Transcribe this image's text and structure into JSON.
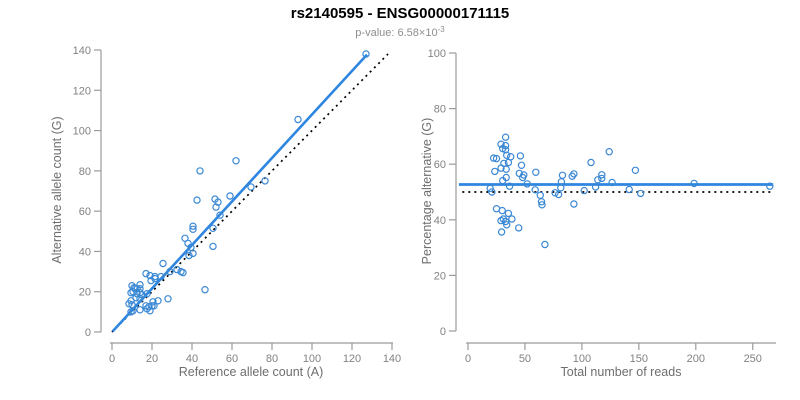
{
  "header": {
    "title": "rs2140595 - ENSG00000171115",
    "subtitle_base": "p-value: 6.58×10",
    "subtitle_exponent": "-3"
  },
  "colors": {
    "accent_blue_line": "#2e86e0",
    "accent_blue_point": "#3a88d4",
    "axis_line": "#9b9b9b",
    "tick_text": "#828282",
    "axis_label_text": "#6e6e6e",
    "identity_line": "#000000"
  },
  "chart_data": [
    {
      "type": "scatter",
      "panel": "left",
      "title": "rs2140595 - ENSG00000171115",
      "subtitle": "p-value: 6.58×10^-3",
      "xlabel": "Reference allele count (A)",
      "ylabel": "Alternative allele count (G)",
      "xlim": [
        0,
        140
      ],
      "ylim": [
        0,
        140
      ],
      "xticks": [
        0,
        20,
        40,
        60,
        80,
        100,
        120,
        140
      ],
      "yticks": [
        0,
        20,
        40,
        60,
        80,
        100,
        120,
        140
      ],
      "grid": false,
      "legend": "none",
      "marker": {
        "shape": "open-circle",
        "radius": 3.1,
        "color": "#3a88d4"
      },
      "points": [
        [
          10,
          23
        ],
        [
          11,
          22
        ],
        [
          11.5,
          21.5
        ],
        [
          12.5,
          21.5
        ],
        [
          14,
          21.5
        ],
        [
          14,
          23.5
        ],
        [
          9.5,
          19.5
        ],
        [
          12.5,
          19
        ],
        [
          10.5,
          20
        ],
        [
          14,
          19.5
        ],
        [
          12,
          17
        ],
        [
          14,
          16.5
        ],
        [
          9.5,
          15.5
        ],
        [
          8.5,
          14
        ],
        [
          10,
          13.5
        ],
        [
          9.5,
          10
        ],
        [
          10.5,
          10.5
        ],
        [
          14,
          11
        ],
        [
          17.5,
          11.5
        ],
        [
          19,
          10.5
        ],
        [
          18.5,
          12.5
        ],
        [
          20,
          13
        ],
        [
          17,
          13
        ],
        [
          23,
          15.5
        ],
        [
          20.5,
          15
        ],
        [
          21,
          13
        ],
        [
          28,
          16.5
        ],
        [
          17.5,
          19
        ],
        [
          15,
          18.5
        ],
        [
          19.5,
          25.5
        ],
        [
          21.5,
          26.5
        ],
        [
          24.5,
          27.5
        ],
        [
          17,
          29
        ],
        [
          19,
          28
        ],
        [
          21.5,
          27.5
        ],
        [
          25.5,
          34
        ],
        [
          29,
          30
        ],
        [
          32.5,
          31
        ],
        [
          34.5,
          30
        ],
        [
          35.5,
          29.5
        ],
        [
          36.5,
          46.5
        ],
        [
          38,
          44
        ],
        [
          39.5,
          42
        ],
        [
          40.5,
          39
        ],
        [
          38.5,
          38
        ],
        [
          40.5,
          52.5
        ],
        [
          40.5,
          51
        ],
        [
          46.5,
          21
        ],
        [
          50.5,
          42.5
        ],
        [
          50.5,
          51.5
        ],
        [
          42.5,
          65.5
        ],
        [
          51.5,
          66
        ],
        [
          53,
          64.5
        ],
        [
          52,
          62
        ],
        [
          54,
          58
        ],
        [
          59,
          67.5
        ],
        [
          62,
          85
        ],
        [
          44,
          80
        ],
        [
          69.5,
          72
        ],
        [
          76.5,
          75
        ],
        [
          93,
          105.5
        ],
        [
          127,
          138
        ]
      ],
      "lines": [
        {
          "name": "identity-line",
          "style": "dotted",
          "color": "#000000",
          "width": 1.7,
          "from": [
            0,
            0
          ],
          "to": [
            138,
            138
          ]
        },
        {
          "name": "fit-line",
          "style": "solid",
          "color": "#2e86e0",
          "width": 2.6,
          "from": [
            0.3,
            0.3
          ],
          "to": [
            127.5,
            137.7
          ]
        }
      ]
    },
    {
      "type": "scatter",
      "panel": "right",
      "xlabel": "Total number of reads",
      "ylabel": "Percentage alternative (G)",
      "xlim": [
        0,
        265
      ],
      "ylim": [
        0,
        100
      ],
      "xticks": [
        0,
        50,
        100,
        150,
        200,
        250
      ],
      "yticks": [
        0,
        20,
        40,
        60,
        80,
        100
      ],
      "grid": false,
      "legend": "none",
      "marker": {
        "shape": "open-circle",
        "radius": 3.1,
        "color": "#3a88d4"
      },
      "points": [
        [
          33,
          69.7
        ],
        [
          33,
          66.7
        ],
        [
          33,
          65.2
        ],
        [
          34,
          63.2
        ],
        [
          35.5,
          60.6
        ],
        [
          37.5,
          62.7
        ],
        [
          29,
          67.2
        ],
        [
          31.5,
          60.3
        ],
        [
          30.5,
          65.6
        ],
        [
          33.5,
          58.2
        ],
        [
          29,
          58.6
        ],
        [
          30.5,
          54.1
        ],
        [
          25,
          62
        ],
        [
          22.5,
          62.2
        ],
        [
          23.5,
          57.4
        ],
        [
          19.5,
          51.3
        ],
        [
          21,
          50
        ],
        [
          25,
          44
        ],
        [
          29,
          39.7
        ],
        [
          29.5,
          35.6
        ],
        [
          31,
          40.3
        ],
        [
          33,
          39.4
        ],
        [
          30,
          43.3
        ],
        [
          38.5,
          40.3
        ],
        [
          35.5,
          42.3
        ],
        [
          34,
          38.2
        ],
        [
          44.5,
          37.1
        ],
        [
          36.5,
          52.1
        ],
        [
          33.5,
          55.2
        ],
        [
          45,
          56.7
        ],
        [
          48,
          55.2
        ],
        [
          52,
          52.9
        ],
        [
          46,
          63
        ],
        [
          47,
          59.6
        ],
        [
          49,
          56.1
        ],
        [
          59.5,
          57.1
        ],
        [
          59,
          50.8
        ],
        [
          63.5,
          48.8
        ],
        [
          64.5,
          46.5
        ],
        [
          65,
          45.4
        ],
        [
          83,
          56
        ],
        [
          82,
          53.7
        ],
        [
          81.5,
          51.5
        ],
        [
          79.5,
          49.1
        ],
        [
          76.5,
          49.7
        ],
        [
          93,
          56.5
        ],
        [
          91.5,
          55.7
        ],
        [
          67.5,
          31.1
        ],
        [
          93,
          45.7
        ],
        [
          102,
          50.5
        ],
        [
          108,
          60.6
        ],
        [
          117.5,
          56.2
        ],
        [
          117.5,
          54.9
        ],
        [
          114,
          54.4
        ],
        [
          112,
          51.8
        ],
        [
          126.5,
          53.4
        ],
        [
          147,
          57.8
        ],
        [
          124,
          64.5
        ],
        [
          141.5,
          50.9
        ],
        [
          151.5,
          49.5
        ],
        [
          198.5,
          53.1
        ],
        [
          265,
          52.1
        ]
      ],
      "lines": [
        {
          "name": "reference-line-50pct",
          "style": "dotted",
          "color": "#000000",
          "width": 1.7,
          "from": [
            -5,
            50
          ],
          "to": [
            266,
            50
          ]
        },
        {
          "name": "fit-line",
          "style": "solid",
          "color": "#2e86e0",
          "width": 2.8,
          "from": [
            -8,
            52.7
          ],
          "to": [
            268,
            52.7
          ]
        }
      ]
    }
  ]
}
